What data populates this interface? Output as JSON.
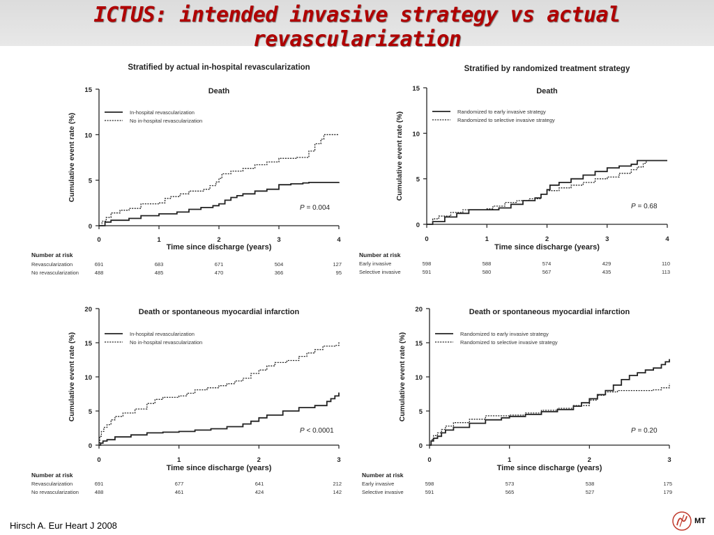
{
  "slide": {
    "title": "ICTUS: intended invasive strategy vs actual revascularization",
    "citation": "Hirsch A. Eur Heart J 2008",
    "logo_text": "MT"
  },
  "chart_data": [
    {
      "type": "line",
      "section_heading": "Stratified by actual in-hospital revascularization",
      "title": "Death",
      "xlabel": "Time since discharge (years)",
      "ylabel": "Cumulative event rate (%)",
      "xlim": [
        0,
        4
      ],
      "ylim": [
        0,
        15
      ],
      "xticks": [
        0,
        1,
        2,
        3,
        4
      ],
      "yticks": [
        0,
        5,
        10,
        15
      ],
      "legend_position": "top-left",
      "p_value_label": "P",
      "p_value_text": " = 0.004",
      "series": [
        {
          "name": "In-hospital revascularization",
          "style": "solid",
          "points": [
            [
              0,
              0
            ],
            [
              0.1,
              0.4
            ],
            [
              0.2,
              0.6
            ],
            [
              0.5,
              0.8
            ],
            [
              0.7,
              1.1
            ],
            [
              1.0,
              1.3
            ],
            [
              1.3,
              1.5
            ],
            [
              1.5,
              1.8
            ],
            [
              1.7,
              2.0
            ],
            [
              1.9,
              2.2
            ],
            [
              2.0,
              2.4
            ],
            [
              2.1,
              2.8
            ],
            [
              2.2,
              3.1
            ],
            [
              2.3,
              3.3
            ],
            [
              2.4,
              3.5
            ],
            [
              2.6,
              3.8
            ],
            [
              2.8,
              4.0
            ],
            [
              3.0,
              4.5
            ],
            [
              3.2,
              4.6
            ],
            [
              3.4,
              4.7
            ],
            [
              3.5,
              4.75
            ],
            [
              4.0,
              4.8
            ]
          ]
        },
        {
          "name": "No in-hospital revascularization",
          "style": "dotted",
          "points": [
            [
              0,
              0
            ],
            [
              0.05,
              0.5
            ],
            [
              0.12,
              0.9
            ],
            [
              0.2,
              1.4
            ],
            [
              0.35,
              1.7
            ],
            [
              0.5,
              1.9
            ],
            [
              0.7,
              2.4
            ],
            [
              1.0,
              2.5
            ],
            [
              1.1,
              3.0
            ],
            [
              1.2,
              3.2
            ],
            [
              1.35,
              3.5
            ],
            [
              1.5,
              3.8
            ],
            [
              1.75,
              4.0
            ],
            [
              1.85,
              4.4
            ],
            [
              1.95,
              4.8
            ],
            [
              2.0,
              5.2
            ],
            [
              2.05,
              5.7
            ],
            [
              2.2,
              6.0
            ],
            [
              2.4,
              6.3
            ],
            [
              2.6,
              6.7
            ],
            [
              2.8,
              7.0
            ],
            [
              3.0,
              7.4
            ],
            [
              3.3,
              7.5
            ],
            [
              3.5,
              8.2
            ],
            [
              3.6,
              9.0
            ],
            [
              3.7,
              9.5
            ],
            [
              3.75,
              10.0
            ],
            [
              4.0,
              10.0
            ]
          ]
        }
      ],
      "risk_table": {
        "header": "Number at risk",
        "x": [
          0,
          1,
          2,
          3,
          4
        ],
        "rows": [
          {
            "label": "Revascularization",
            "values": [
              "691",
              "683",
              "671",
              "504",
              "127"
            ]
          },
          {
            "label": "No revascularization",
            "values": [
              "488",
              "485",
              "470",
              "366",
              "95"
            ]
          }
        ]
      }
    },
    {
      "type": "line",
      "section_heading": "Stratified by randomized treatment strategy",
      "title": "Death",
      "xlabel": "Time since discharge (years)",
      "ylabel": "Cumulative event rate (%)",
      "xlim": [
        0,
        4
      ],
      "ylim": [
        0,
        15
      ],
      "xticks": [
        0,
        1,
        2,
        3,
        4
      ],
      "yticks": [
        0,
        5,
        10,
        15
      ],
      "legend_position": "top-left",
      "p_value_label": "P",
      "p_value_text": " = 0.68",
      "series": [
        {
          "name": "Randomized to early invasive strategy",
          "style": "solid",
          "points": [
            [
              0,
              0
            ],
            [
              0.1,
              0.3
            ],
            [
              0.3,
              0.8
            ],
            [
              0.5,
              1.2
            ],
            [
              0.7,
              1.6
            ],
            [
              1.0,
              1.6
            ],
            [
              1.2,
              1.8
            ],
            [
              1.4,
              2.2
            ],
            [
              1.6,
              2.6
            ],
            [
              1.8,
              2.9
            ],
            [
              1.9,
              3.3
            ],
            [
              2.0,
              3.8
            ],
            [
              2.05,
              4.3
            ],
            [
              2.2,
              4.6
            ],
            [
              2.4,
              5.0
            ],
            [
              2.6,
              5.4
            ],
            [
              2.8,
              5.8
            ],
            [
              3.0,
              6.2
            ],
            [
              3.2,
              6.4
            ],
            [
              3.4,
              6.6
            ],
            [
              3.5,
              7.0
            ],
            [
              4.0,
              7.0
            ]
          ]
        },
        {
          "name": "Randomized to selective invasive strategy",
          "style": "dotted",
          "points": [
            [
              0,
              0
            ],
            [
              0.1,
              0.6
            ],
            [
              0.2,
              0.9
            ],
            [
              0.4,
              1.3
            ],
            [
              0.6,
              1.6
            ],
            [
              1.0,
              1.7
            ],
            [
              1.1,
              2.0
            ],
            [
              1.3,
              2.4
            ],
            [
              1.5,
              2.6
            ],
            [
              1.7,
              2.8
            ],
            [
              1.9,
              3.3
            ],
            [
              2.0,
              3.7
            ],
            [
              2.2,
              4.0
            ],
            [
              2.4,
              4.3
            ],
            [
              2.6,
              4.6
            ],
            [
              2.8,
              5.0
            ],
            [
              3.0,
              5.2
            ],
            [
              3.2,
              5.6
            ],
            [
              3.4,
              6.0
            ],
            [
              3.5,
              6.3
            ],
            [
              3.6,
              6.7
            ],
            [
              3.65,
              7.0
            ]
          ]
        }
      ],
      "risk_table": {
        "header": "Number at risk",
        "x": [
          0,
          1,
          2,
          3,
          4
        ],
        "rows": [
          {
            "label": "Early invasive",
            "values": [
              "598",
              "588",
              "574",
              "429",
              "110"
            ]
          },
          {
            "label": "Selective invasive",
            "values": [
              "591",
              "580",
              "567",
              "435",
              "113"
            ]
          }
        ]
      }
    },
    {
      "type": "line",
      "section_heading": "",
      "title": "Death or spontaneous myocardial infarction",
      "xlabel": "Time since discharge (years)",
      "ylabel": "Cumulative event rate (%)",
      "xlim": [
        0,
        3
      ],
      "ylim": [
        0,
        20
      ],
      "xticks": [
        0,
        1,
        2,
        3
      ],
      "yticks": [
        0,
        5,
        10,
        15,
        20
      ],
      "legend_position": "top-left",
      "p_value_label": "P",
      "p_value_text": " < 0.0001",
      "series": [
        {
          "name": "In-hospital revascularization",
          "style": "solid",
          "points": [
            [
              0,
              0
            ],
            [
              0.02,
              0.3
            ],
            [
              0.05,
              0.6
            ],
            [
              0.1,
              0.8
            ],
            [
              0.2,
              1.2
            ],
            [
              0.4,
              1.5
            ],
            [
              0.6,
              1.8
            ],
            [
              0.8,
              1.9
            ],
            [
              1.0,
              2.0
            ],
            [
              1.2,
              2.2
            ],
            [
              1.4,
              2.4
            ],
            [
              1.6,
              2.7
            ],
            [
              1.8,
              3.1
            ],
            [
              1.9,
              3.5
            ],
            [
              2.0,
              4.0
            ],
            [
              2.1,
              4.4
            ],
            [
              2.3,
              5.0
            ],
            [
              2.5,
              5.5
            ],
            [
              2.7,
              5.8
            ],
            [
              2.85,
              6.4
            ],
            [
              2.9,
              6.8
            ],
            [
              2.95,
              7.2
            ],
            [
              3.0,
              7.7
            ]
          ]
        },
        {
          "name": "No in-hospital revascularization",
          "style": "dotted",
          "points": [
            [
              0,
              0
            ],
            [
              0.01,
              1.3
            ],
            [
              0.03,
              2.0
            ],
            [
              0.06,
              2.6
            ],
            [
              0.1,
              3.0
            ],
            [
              0.15,
              3.7
            ],
            [
              0.2,
              4.2
            ],
            [
              0.3,
              4.7
            ],
            [
              0.45,
              5.3
            ],
            [
              0.6,
              6.1
            ],
            [
              0.7,
              6.7
            ],
            [
              0.8,
              7.0
            ],
            [
              1.0,
              7.2
            ],
            [
              1.1,
              7.6
            ],
            [
              1.2,
              8.1
            ],
            [
              1.35,
              8.4
            ],
            [
              1.5,
              8.7
            ],
            [
              1.6,
              9.0
            ],
            [
              1.7,
              9.4
            ],
            [
              1.8,
              9.8
            ],
            [
              1.9,
              10.5
            ],
            [
              2.0,
              11.0
            ],
            [
              2.1,
              11.6
            ],
            [
              2.2,
              12.1
            ],
            [
              2.35,
              12.4
            ],
            [
              2.5,
              13.0
            ],
            [
              2.6,
              13.5
            ],
            [
              2.7,
              14.0
            ],
            [
              2.8,
              14.5
            ],
            [
              2.95,
              14.6
            ],
            [
              3.0,
              15.1
            ]
          ]
        }
      ],
      "risk_table": {
        "header": "Number at risk",
        "x": [
          0,
          1,
          2,
          3
        ],
        "rows": [
          {
            "label": "Revascularization",
            "values": [
              "691",
              "677",
              "641",
              "212"
            ]
          },
          {
            "label": "No revascularization",
            "values": [
              "488",
              "461",
              "424",
              "142"
            ]
          }
        ]
      }
    },
    {
      "type": "line",
      "section_heading": "",
      "title": "Death or spontaneous myocardial infarction",
      "xlabel": "Time since discharge (years)",
      "ylabel": "Cumulative event rate (%)",
      "xlim": [
        0,
        3
      ],
      "ylim": [
        0,
        20
      ],
      "xticks": [
        0,
        1,
        2,
        3
      ],
      "yticks": [
        0,
        5,
        10,
        15,
        20
      ],
      "legend_position": "top-left",
      "p_value_label": "P",
      "p_value_text": " = 0.20",
      "series": [
        {
          "name": "Randomized to early invasive strategy",
          "style": "solid",
          "points": [
            [
              0,
              0
            ],
            [
              0.02,
              0.6
            ],
            [
              0.05,
              1.0
            ],
            [
              0.1,
              1.3
            ],
            [
              0.15,
              1.8
            ],
            [
              0.2,
              2.2
            ],
            [
              0.3,
              2.6
            ],
            [
              0.5,
              3.2
            ],
            [
              0.7,
              3.7
            ],
            [
              0.9,
              4.0
            ],
            [
              1.0,
              4.2
            ],
            [
              1.2,
              4.5
            ],
            [
              1.4,
              4.9
            ],
            [
              1.6,
              5.2
            ],
            [
              1.8,
              5.7
            ],
            [
              1.9,
              6.2
            ],
            [
              2.0,
              6.8
            ],
            [
              2.1,
              7.4
            ],
            [
              2.2,
              8.0
            ],
            [
              2.3,
              8.8
            ],
            [
              2.4,
              9.6
            ],
            [
              2.5,
              10.2
            ],
            [
              2.6,
              10.6
            ],
            [
              2.7,
              11.0
            ],
            [
              2.8,
              11.3
            ],
            [
              2.9,
              11.8
            ],
            [
              2.95,
              12.2
            ],
            [
              3.0,
              12.6
            ]
          ]
        },
        {
          "name": "Randomized to selective invasive strategy",
          "style": "dotted",
          "points": [
            [
              0,
              0
            ],
            [
              0.02,
              0.8
            ],
            [
              0.05,
              1.4
            ],
            [
              0.1,
              1.8
            ],
            [
              0.15,
              2.3
            ],
            [
              0.2,
              2.8
            ],
            [
              0.3,
              3.3
            ],
            [
              0.5,
              3.8
            ],
            [
              0.7,
              4.3
            ],
            [
              1.0,
              4.4
            ],
            [
              1.2,
              4.7
            ],
            [
              1.4,
              5.1
            ],
            [
              1.6,
              5.4
            ],
            [
              1.8,
              5.8
            ],
            [
              2.0,
              6.6
            ],
            [
              2.1,
              7.3
            ],
            [
              2.2,
              7.8
            ],
            [
              2.35,
              8.0
            ],
            [
              2.6,
              8.0
            ],
            [
              2.8,
              8.1
            ],
            [
              2.9,
              8.4
            ],
            [
              3.0,
              9.0
            ]
          ]
        }
      ],
      "risk_table": {
        "header": "Number at risk",
        "x": [
          0,
          1,
          2,
          3
        ],
        "rows": [
          {
            "label": "Early invasive",
            "values": [
              "598",
              "573",
              "538",
              "175"
            ]
          },
          {
            "label": "Selective invasive",
            "values": [
              "591",
              "565",
              "527",
              "179"
            ]
          }
        ]
      }
    }
  ]
}
